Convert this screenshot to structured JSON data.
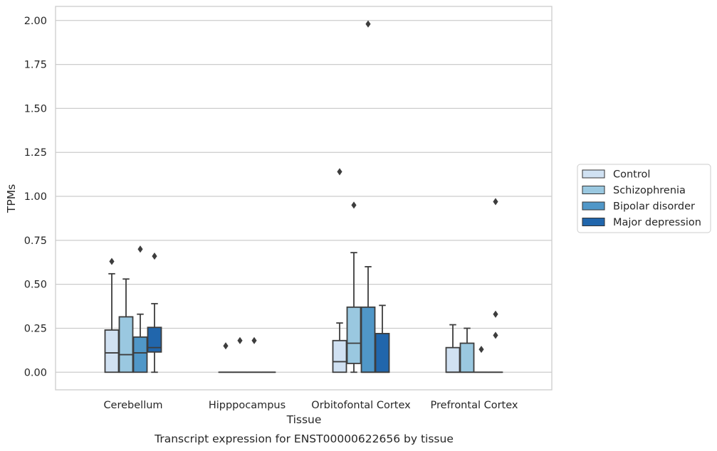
{
  "chart_data": {
    "type": "box",
    "title": "Transcript expression for ENST00000622656 by tissue",
    "xlabel": "Tissue",
    "ylabel": "TPMs",
    "ylim": [
      -0.1,
      2.08
    ],
    "yticks": [
      "0.00",
      "0.25",
      "0.50",
      "0.75",
      "1.00",
      "1.25",
      "1.50",
      "1.75",
      "2.00"
    ],
    "grid": "horizontal",
    "legend_position": "right",
    "categories": [
      "Cerebellum",
      "Hipppocampus",
      "Orbitofontal Cortex",
      "Prefrontal Cortex"
    ],
    "series": [
      {
        "name": "Control",
        "color": "#d0e1f2",
        "boxes": [
          {
            "whislo": 0.0,
            "q1": 0.0,
            "med": 0.11,
            "q3": 0.24,
            "whishi": 0.56,
            "fliers": [
              0.63
            ]
          },
          {
            "whislo": 0.0,
            "q1": 0.0,
            "med": 0.0,
            "q3": 0.0,
            "whishi": 0.0,
            "fliers": [
              0.15
            ]
          },
          {
            "whislo": 0.0,
            "q1": 0.0,
            "med": 0.06,
            "q3": 0.18,
            "whishi": 0.28,
            "fliers": [
              1.14
            ]
          },
          {
            "whislo": 0.0,
            "q1": 0.0,
            "med": 0.0,
            "q3": 0.14,
            "whishi": 0.27,
            "fliers": []
          }
        ]
      },
      {
        "name": "Schizophrenia",
        "color": "#9ac8e0",
        "boxes": [
          {
            "whislo": 0.0,
            "q1": 0.0,
            "med": 0.1,
            "q3": 0.315,
            "whishi": 0.53,
            "fliers": []
          },
          {
            "whislo": 0.0,
            "q1": 0.0,
            "med": 0.0,
            "q3": 0.0,
            "whishi": 0.0,
            "fliers": [
              0.18
            ]
          },
          {
            "whislo": 0.0,
            "q1": 0.05,
            "med": 0.165,
            "q3": 0.37,
            "whishi": 0.68,
            "fliers": [
              0.95
            ]
          },
          {
            "whislo": 0.0,
            "q1": 0.0,
            "med": 0.0,
            "q3": 0.165,
            "whishi": 0.25,
            "fliers": []
          }
        ]
      },
      {
        "name": "Bipolar disorder",
        "color": "#5097c8",
        "boxes": [
          {
            "whislo": 0.0,
            "q1": 0.0,
            "med": 0.11,
            "q3": 0.2,
            "whishi": 0.33,
            "fliers": [
              0.7
            ]
          },
          {
            "whislo": 0.0,
            "q1": 0.0,
            "med": 0.0,
            "q3": 0.0,
            "whishi": 0.0,
            "fliers": [
              0.18
            ]
          },
          {
            "whislo": 0.0,
            "q1": 0.0,
            "med": 0.0,
            "q3": 0.37,
            "whishi": 0.6,
            "fliers": [
              1.98
            ]
          },
          {
            "whislo": 0.0,
            "q1": 0.0,
            "med": 0.0,
            "q3": 0.0,
            "whishi": 0.0,
            "fliers": [
              0.13
            ]
          }
        ]
      },
      {
        "name": "Major depression",
        "color": "#2166ac",
        "boxes": [
          {
            "whislo": 0.0,
            "q1": 0.115,
            "med": 0.14,
            "q3": 0.255,
            "whishi": 0.39,
            "fliers": [
              0.66
            ]
          },
          {
            "whislo": 0.0,
            "q1": 0.0,
            "med": 0.0,
            "q3": 0.0,
            "whishi": 0.0,
            "fliers": []
          },
          {
            "whislo": 0.0,
            "q1": 0.0,
            "med": 0.0,
            "q3": 0.22,
            "whishi": 0.38,
            "fliers": []
          },
          {
            "whislo": 0.0,
            "q1": 0.0,
            "med": 0.0,
            "q3": 0.0,
            "whishi": 0.0,
            "fliers": [
              0.21,
              0.33,
              0.97
            ]
          }
        ]
      }
    ]
  }
}
